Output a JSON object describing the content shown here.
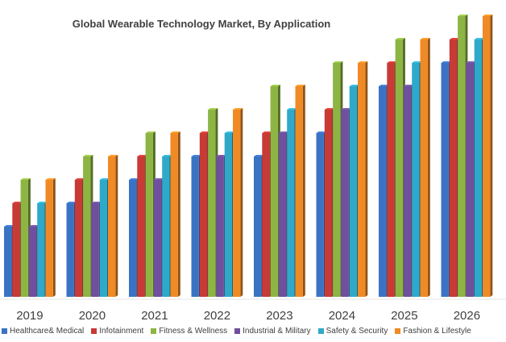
{
  "chart_data": {
    "type": "bar",
    "style": "3d-clustered-column",
    "title": "Global Wearable Technology Market, By Application",
    "xlabel": "",
    "ylabel": "",
    "y_axis_shown": false,
    "grid": false,
    "legend_position": "bottom",
    "categories": [
      "2019",
      "2020",
      "2021",
      "2022",
      "2023",
      "2024",
      "2025",
      "2026"
    ],
    "series": [
      {
        "name": "Healthcare& Medical",
        "color": "#3a73c4",
        "values": [
          3,
          4,
          5,
          6,
          6,
          7,
          9,
          10
        ]
      },
      {
        "name": "Infotainment",
        "color": "#c83a36",
        "values": [
          4,
          5,
          6,
          7,
          7,
          8,
          10,
          11
        ]
      },
      {
        "name": "Fitness & Wellness",
        "color": "#8db543",
        "values": [
          5,
          6,
          7,
          8,
          9,
          10,
          11,
          12
        ]
      },
      {
        "name": "Industrial & Military",
        "color": "#6f4f9e",
        "values": [
          3,
          4,
          5,
          6,
          7,
          8,
          9,
          10
        ]
      },
      {
        "name": "Safety & Security",
        "color": "#2fa9c9",
        "values": [
          4,
          5,
          6,
          7,
          8,
          9,
          10,
          11
        ]
      },
      {
        "name": "Fashion & Lifestyle",
        "color": "#f08a24",
        "values": [
          5,
          6,
          7,
          8,
          9,
          10,
          11,
          12
        ]
      }
    ]
  }
}
